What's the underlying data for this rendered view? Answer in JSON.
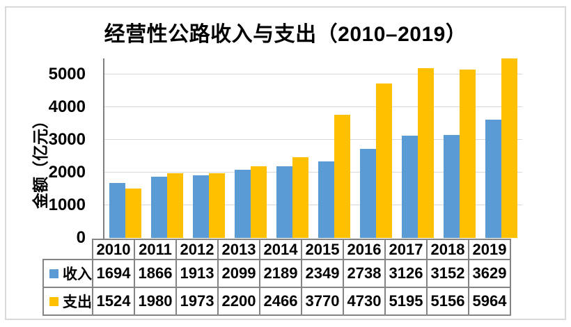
{
  "chart_data": {
    "type": "bar",
    "title": "经营性公路收入与支出（2010–2019）",
    "ylabel": "金额（亿元）",
    "xlabel": "",
    "categories": [
      "2010",
      "2011",
      "2012",
      "2013",
      "2014",
      "2015",
      "2016",
      "2017",
      "2018",
      "2019"
    ],
    "series": [
      {
        "name": "收入",
        "color": "#5B9BD5",
        "values": [
          1694,
          1866,
          1913,
          2099,
          2189,
          2349,
          2738,
          3126,
          3152,
          3629
        ]
      },
      {
        "name": "支出",
        "color": "#FFC000",
        "values": [
          1524,
          1980,
          1973,
          2200,
          2466,
          3770,
          4730,
          5195,
          5156,
          5964
        ]
      }
    ],
    "ylim": [
      0,
      5500
    ],
    "yticks": [
      0,
      1000,
      2000,
      3000,
      4000,
      5000
    ],
    "grid": true,
    "legend_position": "data-table-left",
    "note_overflow_bar_clipped_at_axis_max": true,
    "colors": {
      "gridline": "#D6D6D6",
      "y_axis_line": "#7F7F7F",
      "table_border": "#848484",
      "chart_frame": "#D9D9D9",
      "text": "#000000",
      "background": "#FFFFFF"
    }
  }
}
